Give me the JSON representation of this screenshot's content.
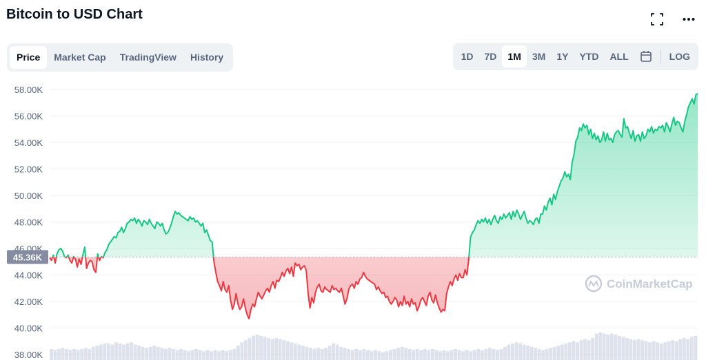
{
  "header": {
    "title": "Bitcoin to USD Chart"
  },
  "icons": {
    "fullscreen": "fullscreen-icon",
    "more": "more-icon",
    "calendar": "calendar-icon"
  },
  "tabs": [
    {
      "label": "Price",
      "active": true
    },
    {
      "label": "Market Cap",
      "active": false
    },
    {
      "label": "TradingView",
      "active": false
    },
    {
      "label": "History",
      "active": false
    }
  ],
  "ranges": [
    {
      "label": "1D",
      "active": false
    },
    {
      "label": "7D",
      "active": false
    },
    {
      "label": "1M",
      "active": true
    },
    {
      "label": "3M",
      "active": false
    },
    {
      "label": "1Y",
      "active": false
    },
    {
      "label": "YTD",
      "active": false
    },
    {
      "label": "ALL",
      "active": false
    }
  ],
  "log_label": "LOG",
  "colors": {
    "up": "#16c784",
    "down": "#ea3943",
    "axis_text": "#58667e",
    "grid": "#eff2f5",
    "volume": "#cfd6e4",
    "badge": "#858ca2"
  },
  "chart_data": {
    "type": "area",
    "title": "",
    "watermark": "CoinMarketCap",
    "current_price_label": "45.36K",
    "baseline": 45360,
    "ylim": [
      38000,
      59000
    ],
    "yticks": [
      38000,
      40000,
      42000,
      44000,
      46000,
      48000,
      50000,
      52000,
      54000,
      56000,
      58000
    ],
    "ytick_labels": [
      "38.00K",
      "40.00K",
      "42.00K",
      "44.00K",
      "46.00K",
      "48.00K",
      "50.00K",
      "52.00K",
      "54.00K",
      "56.00K",
      "58.00K"
    ],
    "grid": true,
    "series": [
      {
        "values": [
          45300,
          45100,
          45500,
          44900,
          45600,
          45900,
          46000,
          45800,
          45400,
          45300,
          45500,
          45100,
          44900,
          45400,
          45200,
          44600,
          45200,
          44800,
          45500,
          46100,
          44500,
          44900,
          45100,
          45000,
          44400,
          44200,
          45600,
          45100,
          45400,
          45300,
          45700,
          45900,
          46300,
          46500,
          46700,
          46900,
          46800,
          47200,
          47300,
          47600,
          47200,
          47500,
          47900,
          48000,
          48200,
          48100,
          48300,
          47900,
          48200,
          48000,
          47700,
          48100,
          48000,
          47800,
          48200,
          47900,
          47700,
          47500,
          48000,
          47900,
          47700,
          47900,
          47400,
          47100,
          47200,
          47500,
          47900,
          48400,
          48800,
          48600,
          48700,
          48500,
          48400,
          48300,
          48200,
          48100,
          48400,
          48200,
          48300,
          48000,
          48100,
          47900,
          47700,
          47900,
          47200,
          47400,
          47000,
          46600,
          46500,
          45000,
          44200,
          43500,
          43200,
          42800,
          43500,
          42900,
          42700,
          43200,
          42100,
          41400,
          41800,
          42600,
          41800,
          41400,
          41600,
          42200,
          41500,
          41000,
          40700,
          41400,
          41800,
          41600,
          42200,
          42700,
          42400,
          42200,
          42500,
          42800,
          43000,
          42700,
          43200,
          43500,
          43000,
          43600,
          43500,
          43800,
          44200,
          43900,
          44300,
          44500,
          44100,
          44600,
          43900,
          44900,
          44700,
          44800,
          44400,
          44600,
          44700,
          44300,
          42600,
          41500,
          42300,
          41900,
          42700,
          43100,
          43300,
          42800,
          42700,
          43100,
          42900,
          42800,
          42700,
          43200,
          42900,
          43000,
          42800,
          42700,
          43000,
          42400,
          41800,
          42200,
          42900,
          43200,
          43300,
          43000,
          43500,
          43300,
          43700,
          43800,
          44200,
          43900,
          43700,
          43600,
          43500,
          43400,
          43300,
          42900,
          43100,
          42800,
          42600,
          42700,
          42300,
          42400,
          42000,
          41800,
          42000,
          42300,
          42100,
          41600,
          42000,
          41700,
          42400,
          41800,
          42000,
          41600,
          42200,
          41800,
          41900,
          41300,
          41600,
          42100,
          42300,
          42000,
          41700,
          42400,
          42700,
          42100,
          41900,
          42500,
          41900,
          41500,
          41200,
          41400,
          41300,
          42600,
          43100,
          43500,
          43200,
          43700,
          44000,
          43600,
          44100,
          43800,
          43800,
          44400,
          44000,
          45200,
          46900,
          47200,
          47400,
          47800,
          48100,
          47900,
          48200,
          48000,
          48300,
          47900,
          48200,
          47800,
          48200,
          48500,
          48100,
          47900,
          48400,
          48200,
          48600,
          48300,
          48500,
          48700,
          48200,
          48800,
          48400,
          48900,
          48600,
          48200,
          48500,
          48800,
          48300,
          47900,
          48100,
          48000,
          47800,
          48200,
          48300,
          47900,
          48600,
          48600,
          49200,
          48900,
          49500,
          49800,
          49300,
          50100,
          49700,
          50300,
          50700,
          51100,
          51300,
          51800,
          51400,
          51600,
          51200,
          52500,
          53100,
          54100,
          54400,
          55100,
          54900,
          55400,
          55100,
          55300,
          54600,
          55000,
          54300,
          54700,
          54200,
          54500,
          54000,
          54200,
          54800,
          54100,
          54700,
          54200,
          54300,
          54000,
          54600,
          54800,
          54900,
          54600,
          54400,
          55800,
          55100,
          55200,
          54700,
          54300,
          54900,
          54100,
          54500,
          54600,
          54100,
          54800,
          54300,
          54500,
          55000,
          54800,
          55200,
          54700,
          55000,
          54900,
          55200,
          55100,
          55300,
          54800,
          55500,
          55200,
          54800,
          55400,
          55900,
          55300,
          55600,
          55500,
          55100,
          54800,
          55600,
          56100,
          56700,
          57000,
          57300,
          56900,
          57600,
          57700
        ]
      }
    ],
    "volume": [
      0.1,
      0.09,
      0.1,
      0.11,
      0.1,
      0.09,
      0.1,
      0.09,
      0.1,
      0.11,
      0.1,
      0.12,
      0.13,
      0.14,
      0.15,
      0.15,
      0.14,
      0.16,
      0.15,
      0.14,
      0.15,
      0.16,
      0.14,
      0.13,
      0.12,
      0.11,
      0.12,
      0.13,
      0.12,
      0.11,
      0.1,
      0.11,
      0.1,
      0.09,
      0.1,
      0.09,
      0.08,
      0.09,
      0.1,
      0.09,
      0.08,
      0.09,
      0.08,
      0.09,
      0.08,
      0.09,
      0.08,
      0.09,
      0.1,
      0.13,
      0.16,
      0.18,
      0.2,
      0.22,
      0.23,
      0.22,
      0.21,
      0.2,
      0.19,
      0.2,
      0.19,
      0.18,
      0.17,
      0.16,
      0.15,
      0.14,
      0.13,
      0.12,
      0.11,
      0.1,
      0.11,
      0.1,
      0.11,
      0.13,
      0.15,
      0.14,
      0.12,
      0.11,
      0.1,
      0.09,
      0.1,
      0.09,
      0.1,
      0.09,
      0.08,
      0.09,
      0.08,
      0.07,
      0.08,
      0.09,
      0.1,
      0.11,
      0.12,
      0.11,
      0.1,
      0.09,
      0.1,
      0.09,
      0.1,
      0.09,
      0.1,
      0.09,
      0.08,
      0.09,
      0.08,
      0.09,
      0.1,
      0.09,
      0.08,
      0.09,
      0.08,
      0.09,
      0.1,
      0.09,
      0.1,
      0.11,
      0.1,
      0.09,
      0.1,
      0.12,
      0.14,
      0.15,
      0.16,
      0.15,
      0.14,
      0.13,
      0.12,
      0.11,
      0.1,
      0.09,
      0.1,
      0.11,
      0.12,
      0.13,
      0.14,
      0.15,
      0.16,
      0.17,
      0.16,
      0.18,
      0.19,
      0.18,
      0.2,
      0.24,
      0.25,
      0.24,
      0.23,
      0.24,
      0.23,
      0.22,
      0.21,
      0.2,
      0.19,
      0.18,
      0.19,
      0.18,
      0.17,
      0.16,
      0.17,
      0.16,
      0.15,
      0.16,
      0.17,
      0.18,
      0.17,
      0.19,
      0.2,
      0.19,
      0.21,
      0.22
    ]
  }
}
